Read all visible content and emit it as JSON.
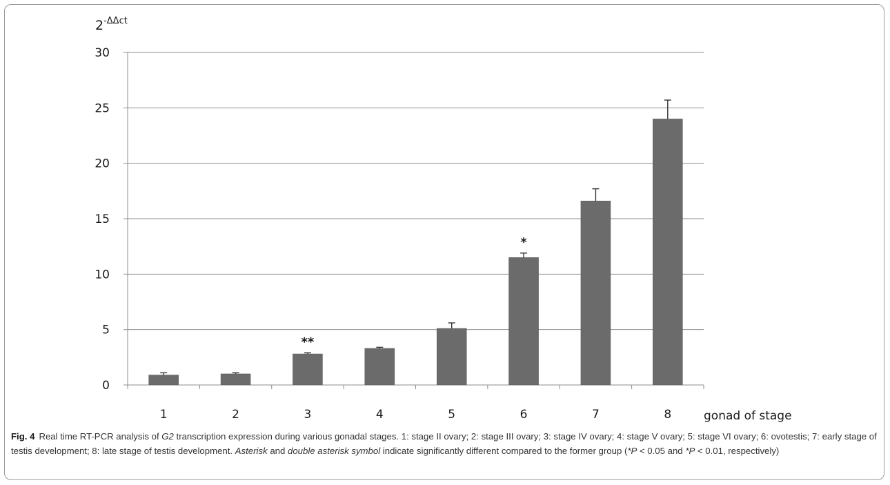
{
  "chart_data": {
    "type": "bar",
    "categories": [
      "1",
      "2",
      "3",
      "4",
      "5",
      "6",
      "7",
      "8"
    ],
    "values": [
      0.9,
      1.0,
      2.8,
      3.3,
      5.1,
      11.5,
      16.6,
      24.0
    ],
    "error_upper": [
      1.1,
      1.1,
      2.9,
      3.4,
      5.6,
      11.9,
      17.7,
      25.7
    ],
    "annotations": [
      "",
      "",
      "**",
      "",
      "",
      "*",
      "",
      ""
    ],
    "ylabel_base": "2",
    "ylabel_exp": "-ΔΔct",
    "xlabel": "gonad of stage",
    "ylim": [
      0,
      30
    ],
    "yticks": [
      0,
      5,
      10,
      15,
      20,
      25,
      30
    ],
    "grid": true,
    "bar_color": "#6b6b6b"
  },
  "caption": {
    "label": "Fig. 4",
    "part1": "Real time RT-PCR analysis of ",
    "gene": "G2",
    "part2": " transcription expression during various gonadal stages. 1: stage II ovary; 2: stage III ovary; 3: stage IV ovary; 4: stage V ovary; 5: stage VI ovary; 6: ovotestis; 7: early stage of testis development; 8: late stage of testis development. ",
    "asterisk": "Asterisk",
    "and": " and ",
    "double_asterisk": "double asterisk symbol",
    "part3": " indicate significantly different compared to the former group (",
    "p1": "*P",
    "part4": " < 0.05 and ",
    "p2": "*P",
    "part5": " < 0.01, respectively)"
  }
}
